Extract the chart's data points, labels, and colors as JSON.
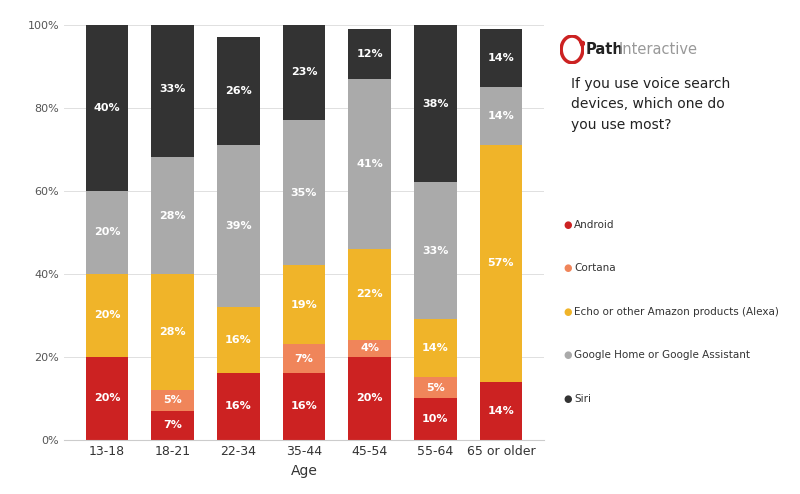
{
  "categories": [
    "13-18",
    "18-21",
    "22-34",
    "35-44",
    "45-54",
    "55-64",
    "65 or older"
  ],
  "series": {
    "Android": [
      20,
      7,
      16,
      16,
      20,
      10,
      14
    ],
    "Cortana": [
      0,
      5,
      0,
      7,
      4,
      5,
      0
    ],
    "Echo": [
      20,
      28,
      16,
      19,
      22,
      14,
      57
    ],
    "Google": [
      20,
      28,
      39,
      35,
      41,
      33,
      14
    ],
    "Siri": [
      40,
      33,
      26,
      23,
      12,
      38,
      14
    ]
  },
  "colors": {
    "Android": "#cc2222",
    "Cortana": "#f0855a",
    "Echo": "#f0b429",
    "Google": "#aaaaaa",
    "Siri": "#333333"
  },
  "xlabel": "Age",
  "bar_width": 0.65,
  "question_text": "If you use voice search\ndevices, which one do\nyou use most?",
  "legend_labels": [
    "Android",
    "Cortana",
    "Echo or other Amazon products (Alexa)",
    "Google Home or Google Assistant",
    "Siri"
  ],
  "brand_bold": "Path",
  "brand_light": "Interactive",
  "background_color": "#ffffff",
  "red_accent": "#cc2222",
  "series_order": [
    "Android",
    "Cortana",
    "Echo",
    "Google",
    "Siri"
  ]
}
